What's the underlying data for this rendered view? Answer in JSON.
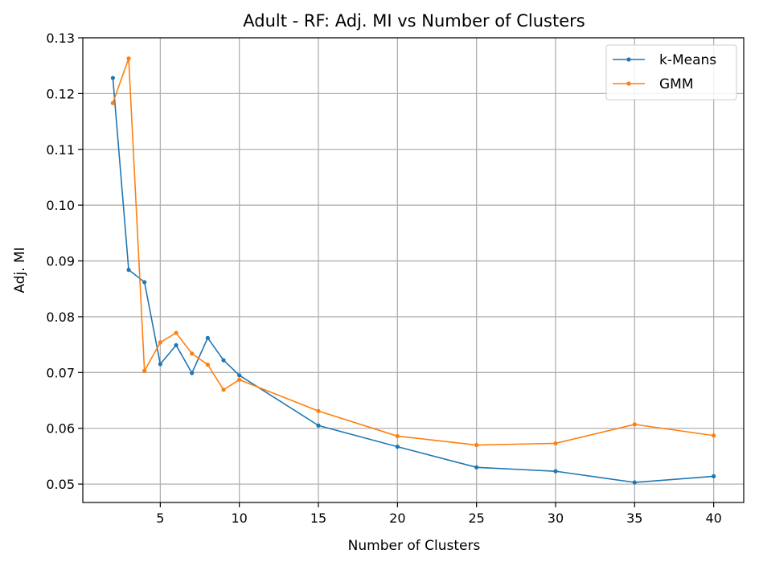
{
  "chart_data": {
    "type": "line",
    "title": "Adult - RF: Adj. MI vs Number of Clusters",
    "xlabel": "Number of Clusters",
    "ylabel": "Adj. MI",
    "x": [
      2,
      3,
      4,
      5,
      6,
      7,
      8,
      9,
      10,
      15,
      20,
      25,
      30,
      35,
      40
    ],
    "xticks": [
      5,
      10,
      15,
      20,
      25,
      30,
      35,
      40
    ],
    "yticks": [
      "0.05",
      "0.06",
      "0.07",
      "0.08",
      "0.09",
      "0.10",
      "0.11",
      "0.12",
      "0.13"
    ],
    "xlim": [
      0.1,
      41.9
    ],
    "ylim": [
      0.0467,
      0.13
    ],
    "grid": true,
    "legend_position": "top-right",
    "series": [
      {
        "name": "k-Means",
        "color": "#1f77b4",
        "values": [
          0.1228,
          0.0884,
          0.0862,
          0.0715,
          0.0749,
          0.0699,
          0.0762,
          0.0722,
          0.0695,
          0.0605,
          0.0567,
          0.053,
          0.0523,
          0.0503,
          0.0514
        ]
      },
      {
        "name": "GMM",
        "color": "#ff7f0e",
        "values": [
          0.1183,
          0.1263,
          0.0703,
          0.0754,
          0.0771,
          0.0734,
          0.0714,
          0.0669,
          0.0687,
          0.0631,
          0.0586,
          0.057,
          0.0573,
          0.0607,
          0.0587
        ]
      }
    ]
  }
}
